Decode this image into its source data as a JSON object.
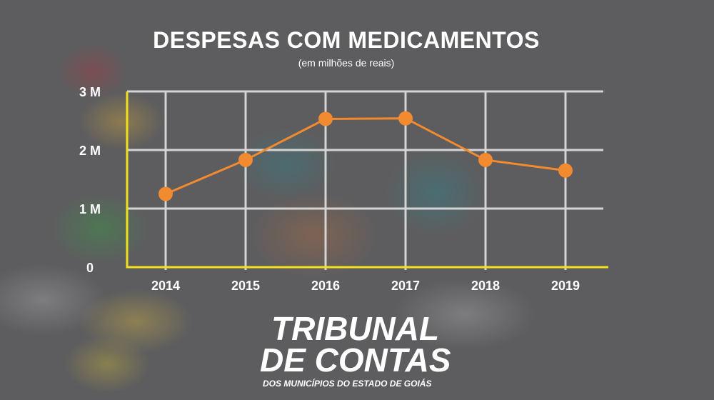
{
  "chart_data": {
    "type": "line",
    "title": "DESPESAS COM MEDICAMENTOS",
    "subtitle": "(em milhões de reais)",
    "xlabel": "",
    "ylabel": "",
    "categories": [
      "2014",
      "2015",
      "2016",
      "2017",
      "2018",
      "2019"
    ],
    "series": [
      {
        "name": "Despesas com medicamentos",
        "values": [
          1.25,
          1.83,
          2.53,
          2.54,
          1.83,
          1.65
        ]
      }
    ],
    "ylim": [
      0,
      3
    ],
    "yticks": [
      {
        "value": 0,
        "label": "0"
      },
      {
        "value": 1,
        "label": "1 M"
      },
      {
        "value": 2,
        "label": "2 M"
      },
      {
        "value": 3,
        "label": "3 M"
      }
    ],
    "grid": true,
    "legend": "none",
    "colors": {
      "line": "#f28a30",
      "axis": "#f2e01a",
      "grid": "#d4d4d4"
    }
  },
  "logo": {
    "line1": "TRIBUNAL",
    "line2": "DE CONTAS",
    "line3": "DOS MUNICÍPIOS DO ESTADO DE GOIÁS"
  }
}
